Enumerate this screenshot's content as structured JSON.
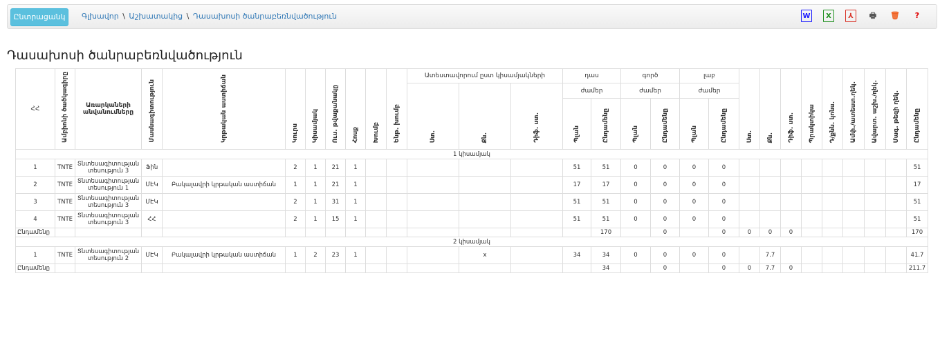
{
  "toolbar": {
    "back_label": "Ընտրացանկ",
    "breadcrumb": [
      "Գլխավոր",
      "Աշխատակից",
      "Դասախոսի ծանրաբեռնվածություն"
    ],
    "separator": "\\",
    "icons": [
      {
        "name": "word-icon",
        "glyph": "W",
        "color": "#1a1aff"
      },
      {
        "name": "excel-icon",
        "glyph": "X",
        "color": "#1d8f1d"
      },
      {
        "name": "pdf-icon",
        "glyph": "⅄",
        "color": "#d9352a"
      },
      {
        "name": "print-icon",
        "glyph": "🖶",
        "color": "#555"
      },
      {
        "name": "trash-icon",
        "glyph": "🗑",
        "color": "#f06020"
      },
      {
        "name": "help-icon",
        "glyph": "?",
        "color": "#e00000"
      }
    ]
  },
  "page_title": "Դասախոսի ծանրաբեռնվածություն",
  "table": {
    "headers": {
      "n": "ՀՀ",
      "dept_code": "Ամբիոնի ծածկագիրը",
      "subjects": "Առարկաների անվանումները",
      "specialty": "Մասնագիտություն",
      "program": "Կրթական աստիճան",
      "course": "Կուրս",
      "semester": "Կիսամյակ",
      "students": "Ուս. թվաքանակը",
      "stream": "Հոսք",
      "group": "Խումբ",
      "subgroup": "Ենթ. խումբ",
      "attest": "Ատեստավորում ըստ կիսամյակների",
      "st": "Ստ.",
      "qn": "Քն.",
      "dif": "Դիֆ. ստ.",
      "lecture": "դաս",
      "practical": "գործ",
      "lab": "լաբ",
      "hours": "ժամեր",
      "plan": "Պլան",
      "total": "Ընդամենը",
      "practice": "Պրակտիկա",
      "exam_consult": "Դ/քնն. կոնս.",
      "final_attest": "Ամփ./ատեստ.ղեկ.",
      "thesis_lead": "Ավարտ. աշխ./ղեկ.",
      "master_thesis": "Մագ. թեզի ղեկ."
    },
    "groups": [
      {
        "label": "1 կիսամյակ",
        "rows": [
          [
            "1",
            "TNTE",
            "Տնտեսագիտության տեսություն 3",
            "Ֆին",
            "",
            "2",
            "1",
            "21",
            "1",
            "",
            "",
            "",
            "",
            "",
            "51",
            "51",
            "0",
            "0",
            "0",
            "0",
            "",
            "",
            "",
            "",
            "",
            "",
            "",
            "",
            "51"
          ],
          [
            "2",
            "TNTE",
            "Տնտեսագիտության տեսություն 1",
            "ՄԷԿ",
            "Բակալավրի կրթական աստիճան",
            "1",
            "1",
            "21",
            "1",
            "",
            "",
            "",
            "",
            "",
            "17",
            "17",
            "0",
            "0",
            "0",
            "0",
            "",
            "",
            "",
            "",
            "",
            "",
            "",
            "",
            "17"
          ],
          [
            "3",
            "TNTE",
            "Տնտեսագիտության տեսություն 3",
            "ՄԷԿ",
            "",
            "2",
            "1",
            "31",
            "1",
            "",
            "",
            "",
            "",
            "",
            "51",
            "51",
            "0",
            "0",
            "0",
            "0",
            "",
            "",
            "",
            "",
            "",
            "",
            "",
            "",
            "51"
          ],
          [
            "4",
            "TNTE",
            "Տնտեսագիտության տեսություն 3",
            "ՀՀ",
            "",
            "2",
            "1",
            "15",
            "1",
            "",
            "",
            "",
            "",
            "",
            "51",
            "51",
            "0",
            "0",
            "0",
            "0",
            "",
            "",
            "",
            "",
            "",
            "",
            "",
            "",
            "51"
          ]
        ],
        "total": [
          "Ընդամենը",
          "",
          "",
          "",
          "",
          "",
          "",
          "",
          "",
          "",
          "",
          "",
          "",
          "",
          "",
          "170",
          "",
          "0",
          "",
          "0",
          "0",
          "0",
          "0",
          "",
          "",
          "",
          "",
          "",
          "170"
        ]
      },
      {
        "label": "2 կիսամյակ",
        "rows": [
          [
            "1",
            "TNTE",
            "Տնտեսագիտության տեսություն 2",
            "ՄԷԿ",
            "Բակալավրի կրթական աստիճան",
            "1",
            "2",
            "23",
            "1",
            "",
            "",
            "",
            "x",
            "",
            "34",
            "34",
            "0",
            "0",
            "0",
            "0",
            "",
            "7.7",
            "",
            "",
            "",
            "",
            "",
            "",
            "41.7"
          ]
        ],
        "total": [
          "Ընդամենը",
          "",
          "",
          "",
          "",
          "",
          "",
          "",
          "",
          "",
          "",
          "",
          "",
          "",
          "",
          "34",
          "",
          "0",
          "",
          "0",
          "0",
          "7.7",
          "0",
          "",
          "",
          "",
          "",
          "",
          "211.7"
        ]
      }
    ]
  }
}
